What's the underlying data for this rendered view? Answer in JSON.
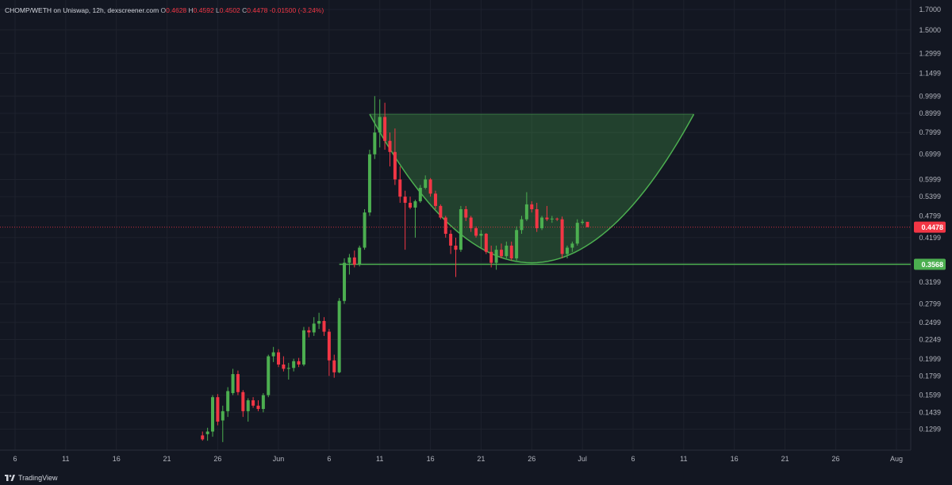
{
  "legend": {
    "symbol": "CHOMP/WETH on Uniswap, 12h, dexscreener.com",
    "o_label": "O",
    "o": "0.4628",
    "h_label": "H",
    "h": "0.4592",
    "l_label": "L",
    "l": "0.4502",
    "c_label": "C",
    "c": "0.4478",
    "change": "-0.01500 (-3.24%)"
  },
  "brand": {
    "label": "TradingView",
    "icon": "tradingview-logo-icon"
  },
  "colors": {
    "background": "#131722",
    "grid": "#1e222d",
    "text": "#b2b5be",
    "up": "#4caf50",
    "down": "#f23645",
    "pattern": "#4caf50",
    "pattern_fill": "rgba(76,175,80,0.28)",
    "price_badge": "#f23645",
    "support_badge": "#4caf50"
  },
  "chart_data": {
    "type": "candlestick",
    "title": "",
    "y_scale": "log",
    "ylim": [
      0.1199,
      1.7
    ],
    "y_ticks": [
      "1.7000",
      "1.5000",
      "1.2999",
      "1.1499",
      "0.9999",
      "0.8999",
      "0.7999",
      "0.6999",
      "0.5999",
      "0.5399",
      "0.4799",
      "0.4199",
      "0.3599",
      "0.3199",
      "0.2799",
      "0.2499",
      "0.2249",
      "0.1999",
      "0.1799",
      "0.1599",
      "0.1439",
      "0.1299"
    ],
    "x_ticks": [
      "6",
      "11",
      "16",
      "21",
      "26",
      "Jun",
      "6",
      "11",
      "16",
      "21",
      "26",
      "Jul",
      "6",
      "11",
      "16",
      "21",
      "26",
      "Aug"
    ],
    "x_tick_dates": [
      "2024-05-06",
      "2024-05-11",
      "2024-05-16",
      "2024-05-21",
      "2024-05-26",
      "2024-06-01",
      "2024-06-06",
      "2024-06-11",
      "2024-06-16",
      "2024-06-21",
      "2024-06-26",
      "2024-07-01",
      "2024-07-06",
      "2024-07-11",
      "2024-07-16",
      "2024-07-21",
      "2024-07-26",
      "2024-08-01"
    ],
    "grid": true,
    "current_price": {
      "value": 0.4478,
      "label": "0.4478"
    },
    "support_line": {
      "value": 0.3568,
      "label": "0.3568",
      "from_date": "2024-06-07 00:00"
    },
    "cup_pattern": {
      "rim_price": 0.895,
      "left_date": "2024-06-10 00:00",
      "right_date": "2024-07-12 00:00",
      "bottom_price": 0.36,
      "bottom_date": "2024-06-26 00:00",
      "closing_date": "2024-07-02 00:00",
      "closing_price": 0.427
    },
    "candles": [
      {
        "t": "2024-05-24 12:00",
        "o": 0.125,
        "h": 0.128,
        "l": 0.121,
        "c": 0.122
      },
      {
        "t": "2024-05-25 00:00",
        "o": 0.126,
        "h": 0.131,
        "l": 0.121,
        "c": 0.128
      },
      {
        "t": "2024-05-25 12:00",
        "o": 0.128,
        "h": 0.16,
        "l": 0.124,
        "c": 0.158
      },
      {
        "t": "2024-05-26 00:00",
        "o": 0.158,
        "h": 0.161,
        "l": 0.133,
        "c": 0.136
      },
      {
        "t": "2024-05-26 12:00",
        "o": 0.137,
        "h": 0.15,
        "l": 0.12,
        "c": 0.145
      },
      {
        "t": "2024-05-27 00:00",
        "o": 0.145,
        "h": 0.168,
        "l": 0.14,
        "c": 0.164
      },
      {
        "t": "2024-05-27 12:00",
        "o": 0.162,
        "h": 0.188,
        "l": 0.16,
        "c": 0.182
      },
      {
        "t": "2024-05-28 00:00",
        "o": 0.182,
        "h": 0.186,
        "l": 0.16,
        "c": 0.163
      },
      {
        "t": "2024-05-28 12:00",
        "o": 0.163,
        "h": 0.165,
        "l": 0.14,
        "c": 0.145
      },
      {
        "t": "2024-05-29 00:00",
        "o": 0.145,
        "h": 0.157,
        "l": 0.136,
        "c": 0.155
      },
      {
        "t": "2024-05-29 12:00",
        "o": 0.155,
        "h": 0.158,
        "l": 0.148,
        "c": 0.15
      },
      {
        "t": "2024-05-30 00:00",
        "o": 0.15,
        "h": 0.155,
        "l": 0.145,
        "c": 0.147
      },
      {
        "t": "2024-05-30 12:00",
        "o": 0.147,
        "h": 0.162,
        "l": 0.144,
        "c": 0.16
      },
      {
        "t": "2024-05-31 00:00",
        "o": 0.16,
        "h": 0.205,
        "l": 0.158,
        "c": 0.203
      },
      {
        "t": "2024-05-31 12:00",
        "o": 0.203,
        "h": 0.215,
        "l": 0.196,
        "c": 0.208
      },
      {
        "t": "2024-06-01 00:00",
        "o": 0.208,
        "h": 0.212,
        "l": 0.19,
        "c": 0.193
      },
      {
        "t": "2024-06-01 12:00",
        "o": 0.193,
        "h": 0.203,
        "l": 0.185,
        "c": 0.188
      },
      {
        "t": "2024-06-02 00:00",
        "o": 0.188,
        "h": 0.195,
        "l": 0.176,
        "c": 0.189
      },
      {
        "t": "2024-06-02 12:00",
        "o": 0.189,
        "h": 0.2,
        "l": 0.185,
        "c": 0.197
      },
      {
        "t": "2024-06-03 00:00",
        "o": 0.197,
        "h": 0.201,
        "l": 0.19,
        "c": 0.193
      },
      {
        "t": "2024-06-03 12:00",
        "o": 0.193,
        "h": 0.243,
        "l": 0.191,
        "c": 0.238
      },
      {
        "t": "2024-06-04 00:00",
        "o": 0.238,
        "h": 0.243,
        "l": 0.228,
        "c": 0.235
      },
      {
        "t": "2024-06-04 12:00",
        "o": 0.235,
        "h": 0.258,
        "l": 0.23,
        "c": 0.248
      },
      {
        "t": "2024-06-05 00:00",
        "o": 0.248,
        "h": 0.265,
        "l": 0.24,
        "c": 0.252
      },
      {
        "t": "2024-06-05 12:00",
        "o": 0.252,
        "h": 0.258,
        "l": 0.23,
        "c": 0.236
      },
      {
        "t": "2024-06-06 00:00",
        "o": 0.236,
        "h": 0.24,
        "l": 0.18,
        "c": 0.198
      },
      {
        "t": "2024-06-06 12:00",
        "o": 0.198,
        "h": 0.205,
        "l": 0.178,
        "c": 0.184
      },
      {
        "t": "2024-06-07 00:00",
        "o": 0.184,
        "h": 0.29,
        "l": 0.183,
        "c": 0.285
      },
      {
        "t": "2024-06-07 12:00",
        "o": 0.285,
        "h": 0.37,
        "l": 0.28,
        "c": 0.36
      },
      {
        "t": "2024-06-08 00:00",
        "o": 0.36,
        "h": 0.38,
        "l": 0.335,
        "c": 0.372
      },
      {
        "t": "2024-06-08 12:00",
        "o": 0.372,
        "h": 0.388,
        "l": 0.35,
        "c": 0.356
      },
      {
        "t": "2024-06-09 00:00",
        "o": 0.356,
        "h": 0.4,
        "l": 0.352,
        "c": 0.395
      },
      {
        "t": "2024-06-09 12:00",
        "o": 0.395,
        "h": 0.5,
        "l": 0.39,
        "c": 0.49
      },
      {
        "t": "2024-06-10 00:00",
        "o": 0.49,
        "h": 0.72,
        "l": 0.48,
        "c": 0.7
      },
      {
        "t": "2024-06-10 12:00",
        "o": 0.7,
        "h": 1.0,
        "l": 0.68,
        "c": 0.8
      },
      {
        "t": "2024-06-11 00:00",
        "o": 0.8,
        "h": 0.98,
        "l": 0.73,
        "c": 0.88
      },
      {
        "t": "2024-06-11 12:00",
        "o": 0.88,
        "h": 0.96,
        "l": 0.72,
        "c": 0.76
      },
      {
        "t": "2024-06-12 00:00",
        "o": 0.76,
        "h": 0.8,
        "l": 0.65,
        "c": 0.71
      },
      {
        "t": "2024-06-12 12:00",
        "o": 0.71,
        "h": 0.82,
        "l": 0.58,
        "c": 0.6
      },
      {
        "t": "2024-06-13 00:00",
        "o": 0.6,
        "h": 0.65,
        "l": 0.52,
        "c": 0.54
      },
      {
        "t": "2024-06-13 12:00",
        "o": 0.54,
        "h": 0.56,
        "l": 0.39,
        "c": 0.52
      },
      {
        "t": "2024-06-14 00:00",
        "o": 0.52,
        "h": 0.54,
        "l": 0.5,
        "c": 0.505
      },
      {
        "t": "2024-06-14 12:00",
        "o": 0.505,
        "h": 0.53,
        "l": 0.42,
        "c": 0.525
      },
      {
        "t": "2024-06-15 00:00",
        "o": 0.525,
        "h": 0.58,
        "l": 0.52,
        "c": 0.57
      },
      {
        "t": "2024-06-15 12:00",
        "o": 0.57,
        "h": 0.615,
        "l": 0.565,
        "c": 0.6
      },
      {
        "t": "2024-06-16 00:00",
        "o": 0.6,
        "h": 0.605,
        "l": 0.54,
        "c": 0.55
      },
      {
        "t": "2024-06-16 12:00",
        "o": 0.55,
        "h": 0.56,
        "l": 0.5,
        "c": 0.51
      },
      {
        "t": "2024-06-17 00:00",
        "o": 0.51,
        "h": 0.515,
        "l": 0.47,
        "c": 0.475
      },
      {
        "t": "2024-06-17 12:00",
        "o": 0.475,
        "h": 0.48,
        "l": 0.42,
        "c": 0.43
      },
      {
        "t": "2024-06-18 00:00",
        "o": 0.43,
        "h": 0.44,
        "l": 0.38,
        "c": 0.4
      },
      {
        "t": "2024-06-18 12:00",
        "o": 0.4,
        "h": 0.42,
        "l": 0.33,
        "c": 0.39
      },
      {
        "t": "2024-06-19 00:00",
        "o": 0.39,
        "h": 0.51,
        "l": 0.385,
        "c": 0.5
      },
      {
        "t": "2024-06-19 12:00",
        "o": 0.5,
        "h": 0.51,
        "l": 0.465,
        "c": 0.475
      },
      {
        "t": "2024-06-20 00:00",
        "o": 0.475,
        "h": 0.48,
        "l": 0.435,
        "c": 0.445
      },
      {
        "t": "2024-06-20 12:00",
        "o": 0.445,
        "h": 0.45,
        "l": 0.42,
        "c": 0.425
      },
      {
        "t": "2024-06-21 00:00",
        "o": 0.425,
        "h": 0.44,
        "l": 0.395,
        "c": 0.43
      },
      {
        "t": "2024-06-21 12:00",
        "o": 0.43,
        "h": 0.432,
        "l": 0.38,
        "c": 0.385
      },
      {
        "t": "2024-06-22 00:00",
        "o": 0.385,
        "h": 0.4,
        "l": 0.35,
        "c": 0.36
      },
      {
        "t": "2024-06-22 12:00",
        "o": 0.36,
        "h": 0.4,
        "l": 0.345,
        "c": 0.39
      },
      {
        "t": "2024-06-23 00:00",
        "o": 0.39,
        "h": 0.405,
        "l": 0.37,
        "c": 0.375
      },
      {
        "t": "2024-06-23 12:00",
        "o": 0.375,
        "h": 0.41,
        "l": 0.37,
        "c": 0.4
      },
      {
        "t": "2024-06-24 00:00",
        "o": 0.4,
        "h": 0.41,
        "l": 0.365,
        "c": 0.37
      },
      {
        "t": "2024-06-24 12:00",
        "o": 0.37,
        "h": 0.45,
        "l": 0.365,
        "c": 0.44
      },
      {
        "t": "2024-06-25 00:00",
        "o": 0.44,
        "h": 0.48,
        "l": 0.43,
        "c": 0.47
      },
      {
        "t": "2024-06-25 12:00",
        "o": 0.47,
        "h": 0.555,
        "l": 0.465,
        "c": 0.515
      },
      {
        "t": "2024-06-26 00:00",
        "o": 0.515,
        "h": 0.525,
        "l": 0.49,
        "c": 0.5
      },
      {
        "t": "2024-06-26 12:00",
        "o": 0.5,
        "h": 0.52,
        "l": 0.435,
        "c": 0.445
      },
      {
        "t": "2024-06-27 00:00",
        "o": 0.445,
        "h": 0.48,
        "l": 0.44,
        "c": 0.475
      },
      {
        "t": "2024-06-27 12:00",
        "o": 0.475,
        "h": 0.51,
        "l": 0.465,
        "c": 0.47
      },
      {
        "t": "2024-06-28 00:00",
        "o": 0.47,
        "h": 0.48,
        "l": 0.46,
        "c": 0.472
      },
      {
        "t": "2024-06-28 12:00",
        "o": 0.472,
        "h": 0.475,
        "l": 0.465,
        "c": 0.47
      },
      {
        "t": "2024-06-29 00:00",
        "o": 0.47,
        "h": 0.478,
        "l": 0.37,
        "c": 0.38
      },
      {
        "t": "2024-06-29 12:00",
        "o": 0.38,
        "h": 0.4,
        "l": 0.37,
        "c": 0.395
      },
      {
        "t": "2024-06-30 00:00",
        "o": 0.395,
        "h": 0.41,
        "l": 0.385,
        "c": 0.405
      },
      {
        "t": "2024-06-30 12:00",
        "o": 0.405,
        "h": 0.47,
        "l": 0.4,
        "c": 0.46
      },
      {
        "t": "2024-07-01 00:00",
        "o": 0.46,
        "h": 0.47,
        "l": 0.455,
        "c": 0.463
      },
      {
        "t": "2024-07-01 12:00",
        "o": 0.4628,
        "h": 0.4592,
        "l": 0.4502,
        "c": 0.4478
      }
    ]
  }
}
